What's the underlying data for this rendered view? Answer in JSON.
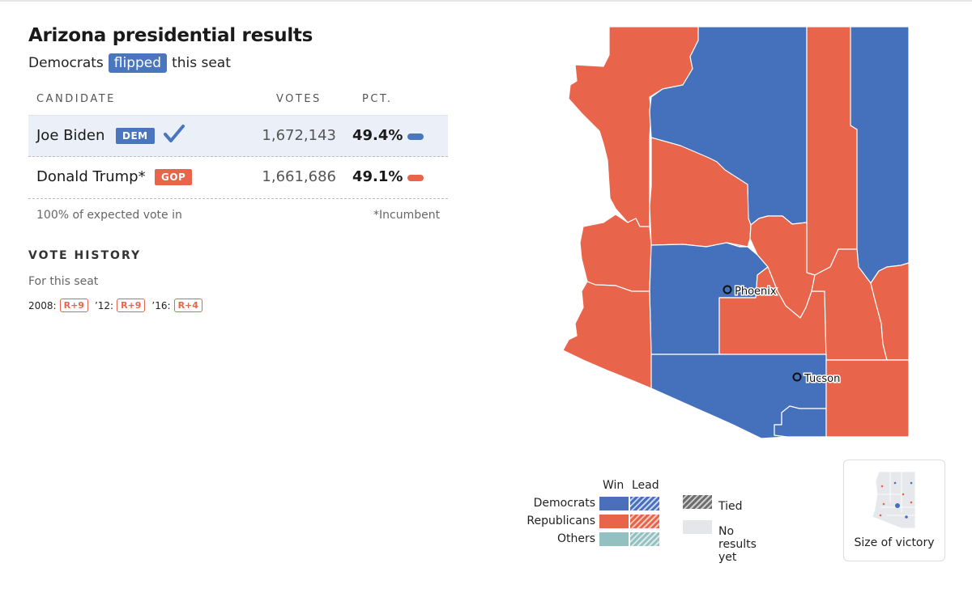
{
  "header": {
    "title": "Arizona presidential results",
    "subtitle_pre": "Democrats",
    "subtitle_badge": "flipped",
    "subtitle_post": "this seat"
  },
  "table": {
    "col_candidate": "CANDIDATE",
    "col_votes": "VOTES",
    "col_pct": "PCT.",
    "rows": [
      {
        "name": "Joe Biden",
        "party": "DEM",
        "votes": "1,672,143",
        "pct": "49.4%",
        "pct_value": 49.4,
        "winner": true,
        "color": "#4a76bd"
      },
      {
        "name": "Donald Trump*",
        "party": "GOP",
        "votes": "1,661,686",
        "pct": "49.1%",
        "pct_value": 49.1,
        "winner": false,
        "color": "#e8644b"
      }
    ],
    "expected_vote": "100% of expected vote in",
    "incumbent_note": "*Incumbent"
  },
  "vote_history": {
    "title": "VOTE HISTORY",
    "subtitle": "For this seat",
    "entries": [
      {
        "year": "2008:",
        "margin": "R+9"
      },
      {
        "year": "’12:",
        "margin": "R+9"
      },
      {
        "year": "’16:",
        "margin": "R+4"
      }
    ]
  },
  "map": {
    "cities": [
      {
        "name": "Phoenix"
      },
      {
        "name": "Tucson"
      }
    ],
    "colors": {
      "dem": "#4a70bb",
      "rep": "#e8644b"
    }
  },
  "legend": {
    "head_win": "Win",
    "head_lead": "Lead",
    "rows": [
      "Democrats",
      "Republicans",
      "Others"
    ],
    "tied": "Tied",
    "no_results": "No results yet"
  },
  "victory_button": {
    "label": "Size of victory"
  }
}
